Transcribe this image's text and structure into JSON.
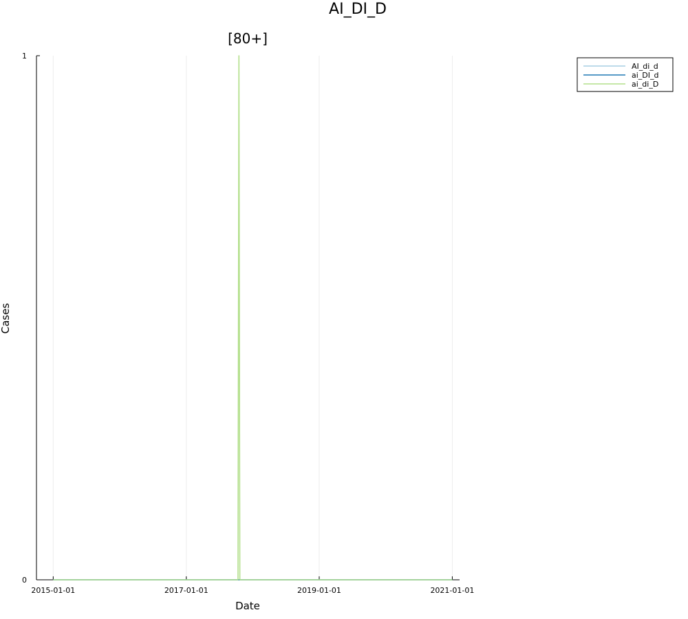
{
  "chart_data": {
    "type": "line",
    "suptitle": "AI_DI_D",
    "title": "[80+]",
    "xlabel": "Date",
    "ylabel": "Cases",
    "x_range": [
      "2014-10-01",
      "2021-02-10"
    ],
    "ylim": [
      0,
      1
    ],
    "x_ticks": [
      "2015-01-01",
      "2017-01-01",
      "2019-01-01",
      "2021-01-01"
    ],
    "y_ticks": [
      0,
      1
    ],
    "grid": true,
    "legend_position": "top-right, outside plot",
    "series": [
      {
        "name": "AI_di_d",
        "color": "#a6cee3",
        "points": [
          [
            "2015-01-01",
            0
          ],
          [
            "2021-01-01",
            0
          ]
        ]
      },
      {
        "name": "ai_DI_d",
        "color": "#1f78b4",
        "points": [
          [
            "2015-01-01",
            0
          ],
          [
            "2021-01-01",
            0
          ]
        ]
      },
      {
        "name": "ai_di_D",
        "color": "#b2df8a",
        "points": [
          [
            "2015-01-01",
            0
          ],
          [
            "2017-10-12",
            0
          ],
          [
            "2017-10-17",
            1
          ],
          [
            "2017-10-22",
            0
          ],
          [
            "2021-01-01",
            0
          ]
        ]
      }
    ]
  }
}
